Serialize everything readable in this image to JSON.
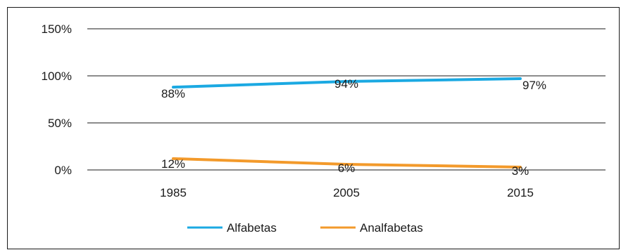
{
  "chart_data": {
    "type": "line",
    "categories": [
      "1985",
      "2005",
      "2015"
    ],
    "series": [
      {
        "name": "Alfabetas",
        "values": [
          88,
          94,
          97
        ],
        "labels": [
          "88%",
          "94%",
          "97%"
        ],
        "color": "#1ba9e2"
      },
      {
        "name": "Analfabetas",
        "values": [
          12,
          6,
          3
        ],
        "labels": [
          "12%",
          "6%",
          "3%"
        ],
        "color": "#f39a2b"
      }
    ],
    "yticks": [
      "0%",
      "50%",
      "100%",
      "150%"
    ],
    "ytick_values": [
      0,
      50,
      100,
      150
    ],
    "ylim": [
      0,
      150
    ],
    "grid": true,
    "legend_position": "bottom"
  }
}
